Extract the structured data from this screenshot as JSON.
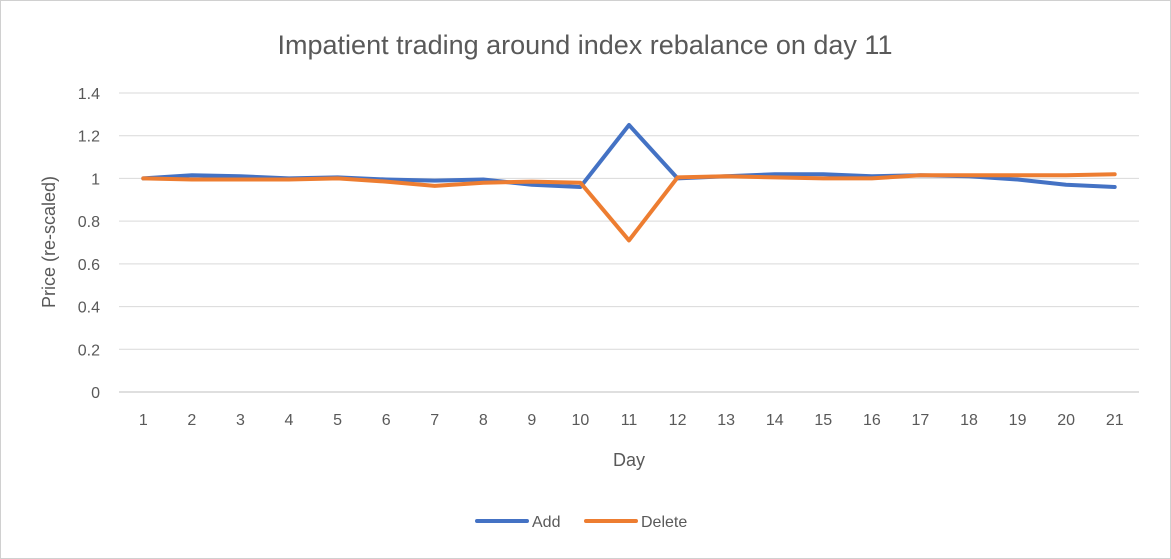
{
  "chart_data": {
    "type": "line",
    "title": "Impatient trading around index rebalance on day 11",
    "xlabel": "Day",
    "ylabel": "Price (re-scaled)",
    "x": [
      "1",
      "2",
      "3",
      "4",
      "5",
      "6",
      "7",
      "8",
      "9",
      "10",
      "11",
      "12",
      "13",
      "14",
      "15",
      "16",
      "17",
      "18",
      "19",
      "20",
      "21"
    ],
    "yticks": [
      "0",
      "0.2",
      "0.4",
      "0.6",
      "0.8",
      "1",
      "1.2",
      "1.4"
    ],
    "ylim": [
      0,
      1.4
    ],
    "grid": true,
    "legend_position": "bottom",
    "series": [
      {
        "name": "Add",
        "color": "#4472c4",
        "values": [
          1.0,
          1.015,
          1.01,
          1.0,
          1.005,
          0.995,
          0.99,
          0.995,
          0.97,
          0.96,
          1.25,
          1.0,
          1.01,
          1.02,
          1.02,
          1.01,
          1.015,
          1.01,
          0.995,
          0.97,
          0.96
        ]
      },
      {
        "name": "Delete",
        "color": "#ed7d31",
        "values": [
          1.0,
          0.995,
          0.995,
          0.995,
          1.0,
          0.985,
          0.965,
          0.98,
          0.985,
          0.98,
          0.71,
          1.005,
          1.01,
          1.005,
          1.0,
          1.0,
          1.015,
          1.015,
          1.015,
          1.015,
          1.02
        ]
      }
    ]
  }
}
